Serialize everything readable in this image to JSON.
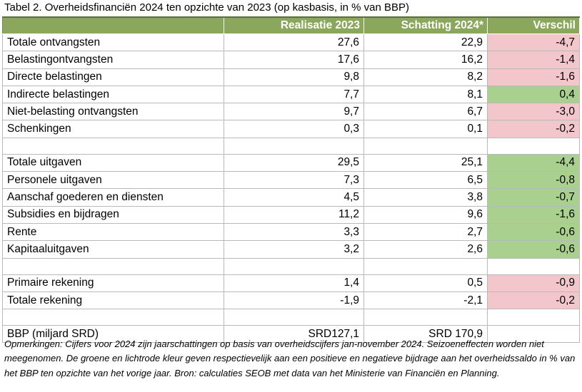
{
  "caption": "Tabel 2. Overheidsfinanciën 2024 ten opzichte van 2023 (op kasbasis, in % van BBP)",
  "columns": [
    "",
    "Realisatie 2023",
    "Schatting 2024*",
    "Verschil"
  ],
  "rows": [
    {
      "label": "Totale ontvangsten",
      "r2023": "27,6",
      "s2024": "22,9",
      "diff": "-4,7"
    },
    {
      "label": "Belastingontvangsten",
      "r2023": "17,6",
      "s2024": "16,2",
      "diff": "-1,4"
    },
    {
      "label": "Directe belastingen",
      "r2023": "9,8",
      "s2024": "8,2",
      "diff": "-1,6"
    },
    {
      "label": "Indirecte belastingen",
      "r2023": "7,7",
      "s2024": "8,1",
      "diff": "0,4"
    },
    {
      "label": "Niet-belasting ontvangsten",
      "r2023": "9,7",
      "s2024": "6,7",
      "diff": "-3,0"
    },
    {
      "label": "Schenkingen",
      "r2023": "0,3",
      "s2024": "0,1",
      "diff": "-0,2"
    },
    {
      "label": "Totale uitgaven",
      "r2023": "29,5",
      "s2024": "25,1",
      "diff": "-4,4"
    },
    {
      "label": "Personele uitgaven",
      "r2023": "7,3",
      "s2024": "6,5",
      "diff": "-0,8"
    },
    {
      "label": "Aanschaf goederen en diensten",
      "r2023": "4,5",
      "s2024": "3,8",
      "diff": "-0,7"
    },
    {
      "label": "Subsidies en bijdragen",
      "r2023": "11,2",
      "s2024": "9,6",
      "diff": "-1,6"
    },
    {
      "label": "Rente",
      "r2023": "3,3",
      "s2024": "2,7",
      "diff": "-0,6"
    },
    {
      "label": "Kapitaaluitgaven",
      "r2023": "3,2",
      "s2024": "2,6",
      "diff": "-0,6"
    },
    {
      "label": "Primaire rekening",
      "r2023": "1,4",
      "s2024": "0,5",
      "diff": "-0,9"
    },
    {
      "label": "Totale rekening",
      "r2023": "-1,9",
      "s2024": "-2,1",
      "diff": "-0,2"
    },
    {
      "label": "BBP (miljard SRD)",
      "r2023": "SRD127,1",
      "s2024": "SRD 170,9",
      "diff": ""
    }
  ],
  "remarks": "Opmerkingen: Cijfers voor 2024 zijn jaarschattingen op basis van overheidscijfers jan-november 2024. Seizoeneffecten worden niet meegenomen. De groene en lichtrode kleur geven respectievelijk aan een positieve en negatieve bijdrage aan het overheidssaldo in % van het BBP ten opzichte van het vorige jaar. Bron: calculaties SEOB met data van het Ministerie van Financiën en Planning.",
  "colors": {
    "header": "#8aa75d",
    "positive": "#a9d08e",
    "negative": "#f2c6cb"
  }
}
